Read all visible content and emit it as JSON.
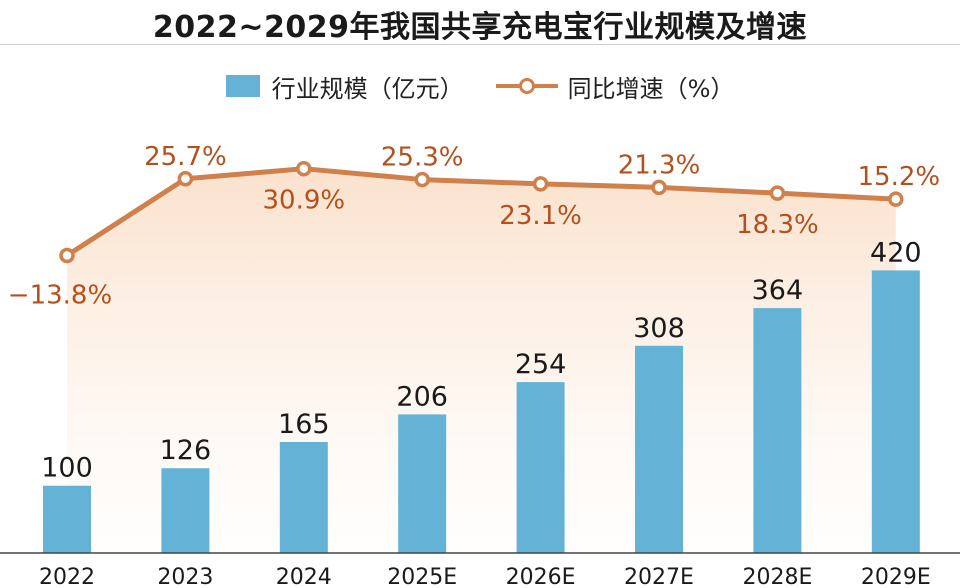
{
  "chart_data": {
    "type": "bar+line",
    "title": "2022~2029年我国共享充电宝行业规模及增速",
    "categories": [
      "2022",
      "2023",
      "2024",
      "2025E",
      "2026E",
      "2027E",
      "2028E",
      "2029E"
    ],
    "series": [
      {
        "name": "行业规模（亿元）",
        "type": "bar",
        "values": [
          100,
          126,
          165,
          206,
          254,
          308,
          364,
          420
        ],
        "labels": [
          "100",
          "126",
          "165",
          "206",
          "254",
          "308",
          "364",
          "420"
        ],
        "color": "#64b3d6"
      },
      {
        "name": "同比增速（%）",
        "type": "line",
        "values": [
          -13.8,
          25.7,
          30.9,
          25.3,
          23.1,
          21.3,
          18.3,
          15.2
        ],
        "labels": [
          "−13.8%",
          "25.7%",
          "30.9%",
          "25.3%",
          "23.1%",
          "21.3%",
          "18.3%",
          "15.2%"
        ],
        "color": "#d0804a",
        "label_color": "#b4501e"
      }
    ],
    "legend_position": "top-center",
    "grid": false
  }
}
